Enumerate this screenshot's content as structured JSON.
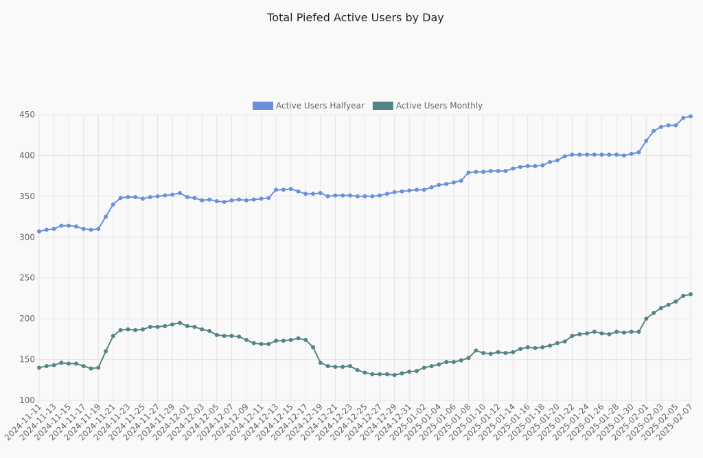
{
  "chart_data": {
    "type": "line",
    "title": "Total Piefed Active Users by Day",
    "categories": [
      "2024-11-11",
      null,
      "2024-11-13",
      null,
      "2024-11-15",
      null,
      "2024-11-17",
      null,
      "2024-11-19",
      null,
      "2024-11-21",
      null,
      "2024-11-23",
      null,
      "2024-11-25",
      null,
      "2024-11-27",
      null,
      "2024-11-29",
      null,
      "2024-12-01",
      null,
      "2024-12-03",
      null,
      "2024-12-05",
      null,
      "2024-12-07",
      null,
      "2024-12-09",
      null,
      "2024-12-11",
      null,
      "2024-12-13",
      null,
      "2024-12-15",
      null,
      "2024-12-17",
      null,
      "2024-12-19",
      null,
      "2024-12-21",
      null,
      "2024-12-23",
      null,
      "2024-12-25",
      null,
      "2024-12-27",
      null,
      "2024-12-29",
      null,
      "2024-12-31",
      null,
      "2025-01-02",
      null,
      "2025-01-04",
      null,
      "2025-01-06",
      null,
      "2025-01-08",
      null,
      "2025-01-10",
      null,
      "2025-01-12",
      null,
      "2025-01-14",
      null,
      "2025-01-16",
      null,
      "2025-01-18",
      null,
      "2025-01-20",
      null,
      "2025-01-22",
      null,
      "2025-01-24",
      null,
      "2025-01-26",
      null,
      "2025-01-28",
      null,
      "2025-01-30",
      null,
      "2025-02-01",
      null,
      "2025-02-03",
      null,
      "2025-02-05",
      null,
      "2025-02-07"
    ],
    "series": [
      {
        "name": "Active Users Halfyear",
        "color": "#6a8fdb",
        "values": [
          307,
          309,
          310,
          314,
          314,
          313,
          310,
          309,
          310,
          325,
          340,
          348,
          349,
          349,
          347,
          349,
          350,
          351,
          352,
          354,
          349,
          348,
          345,
          346,
          344,
          343,
          345,
          346,
          345,
          346,
          347,
          348,
          358,
          358,
          359,
          356,
          353,
          353,
          354,
          350,
          351,
          351,
          351,
          350,
          350,
          350,
          351,
          353,
          355,
          356,
          357,
          358,
          358,
          361,
          364,
          365,
          367,
          369,
          379,
          380,
          380,
          381,
          381,
          381,
          384,
          386,
          387,
          387,
          388,
          392,
          394,
          399,
          401,
          401,
          401,
          401,
          401,
          401,
          401,
          400,
          402,
          404,
          418,
          430,
          435,
          437,
          437,
          446,
          448
        ]
      },
      {
        "name": "Active Users Monthly",
        "color": "#548584",
        "values": [
          140,
          142,
          143,
          146,
          145,
          145,
          142,
          139,
          140,
          160,
          179,
          186,
          187,
          186,
          187,
          190,
          190,
          191,
          193,
          195,
          191,
          190,
          187,
          185,
          180,
          179,
          179,
          178,
          174,
          170,
          169,
          169,
          173,
          173,
          174,
          176,
          174,
          165,
          146,
          142,
          141,
          141,
          142,
          137,
          134,
          132,
          132,
          132,
          131,
          133,
          135,
          136,
          140,
          142,
          144,
          147,
          147,
          149,
          152,
          161,
          158,
          157,
          159,
          158,
          159,
          163,
          165,
          164,
          165,
          167,
          170,
          172,
          179,
          181,
          182,
          184,
          182,
          181,
          184,
          183,
          184,
          184,
          200,
          207,
          213,
          217,
          221,
          228,
          230
        ]
      }
    ],
    "ylim": [
      100,
      450
    ],
    "yticks": [
      100,
      150,
      200,
      250,
      300,
      350,
      400,
      450
    ],
    "grid": true
  }
}
